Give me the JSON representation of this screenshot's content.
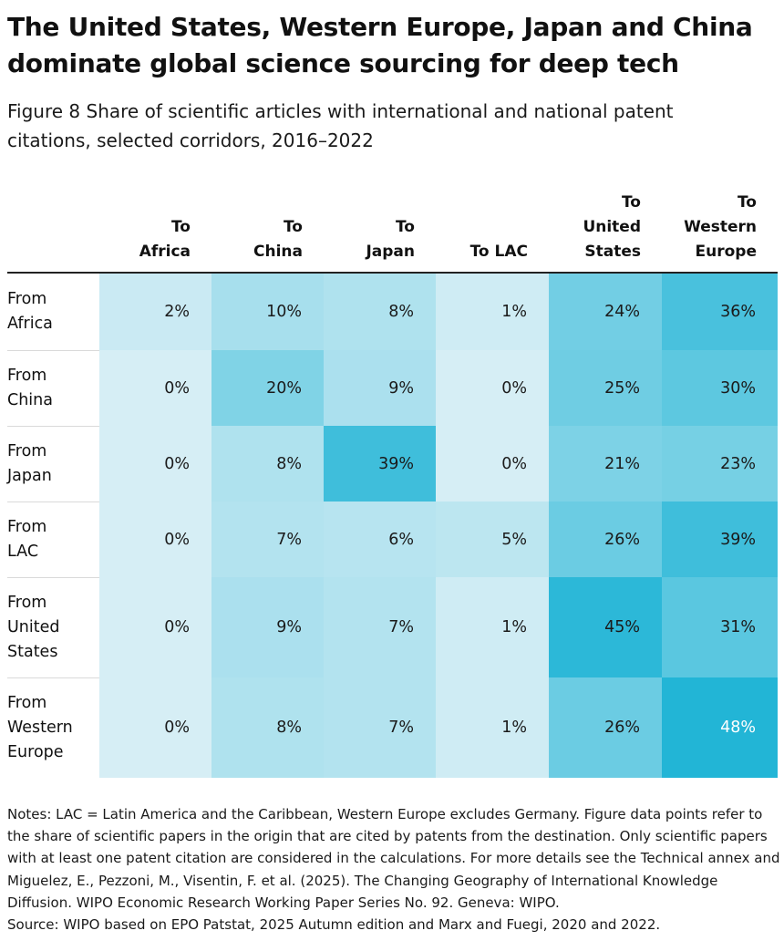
{
  "title": "The United States, Western Europe, Japan and China dominate global science sourcing for deep tech",
  "subtitle": "Figure 8 Share of scientific articles with international and national patent citations, selected corridors, 2016–2022",
  "chart_data": {
    "type": "heatmap",
    "unit": "%",
    "columns": [
      "To\nAfrica",
      "To\nChina",
      "To\nJapan",
      "To LAC",
      "To\nUnited\nStates",
      "To\nWestern\nEurope"
    ],
    "rows": [
      "From\nAfrica",
      "From\nChina",
      "From\nJapan",
      "From\nLAC",
      "From\nUnited\nStates",
      "From\nWestern\nEurope"
    ],
    "values": [
      [
        2,
        10,
        8,
        1,
        24,
        36
      ],
      [
        0,
        20,
        9,
        0,
        25,
        30
      ],
      [
        0,
        8,
        39,
        0,
        21,
        23
      ],
      [
        0,
        7,
        6,
        5,
        26,
        39
      ],
      [
        0,
        9,
        7,
        1,
        45,
        31
      ],
      [
        0,
        8,
        7,
        1,
        26,
        48
      ]
    ],
    "color_low": "#d6eef5",
    "color_high": "#22b5d6"
  },
  "notes": "Notes: LAC = Latin America and the Caribbean, Western Europe excludes Germany. Figure data points refer to the share of scientific papers in the origin that are cited by patents from the destination. Only scientific papers with at least one patent citation are considered in the calculations. For more details see the Technical annex and Miguelez, E., Pezzoni, M., Visentin, F. et al. (2025). The Changing Geography of International Knowledge Diffusion. WIPO Economic Research Working Paper Series No. 92. Geneva: WIPO.",
  "source": "Source: WIPO based on EPO Patstat, 2025 Autumn edition and Marx and Fuegi, 2020 and 2022."
}
